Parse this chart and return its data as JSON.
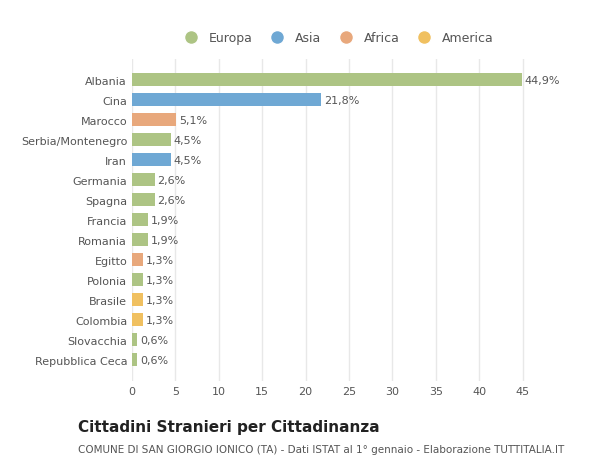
{
  "categories": [
    "Albania",
    "Cina",
    "Marocco",
    "Serbia/Montenegro",
    "Iran",
    "Germania",
    "Spagna",
    "Francia",
    "Romania",
    "Egitto",
    "Polonia",
    "Brasile",
    "Colombia",
    "Slovacchia",
    "Repubblica Ceca"
  ],
  "values": [
    44.9,
    21.8,
    5.1,
    4.5,
    4.5,
    2.6,
    2.6,
    1.9,
    1.9,
    1.3,
    1.3,
    1.3,
    1.3,
    0.6,
    0.6
  ],
  "labels": [
    "44,9%",
    "21,8%",
    "5,1%",
    "4,5%",
    "4,5%",
    "2,6%",
    "2,6%",
    "1,9%",
    "1,9%",
    "1,3%",
    "1,3%",
    "1,3%",
    "1,3%",
    "0,6%",
    "0,6%"
  ],
  "colors": [
    "#adc484",
    "#6fa8d4",
    "#e8a87c",
    "#adc484",
    "#6fa8d4",
    "#adc484",
    "#adc484",
    "#adc484",
    "#adc484",
    "#e8a87c",
    "#adc484",
    "#f0c060",
    "#f0c060",
    "#adc484",
    "#adc484"
  ],
  "legend_labels": [
    "Europa",
    "Asia",
    "Africa",
    "America"
  ],
  "legend_colors": [
    "#adc484",
    "#6fa8d4",
    "#e8a87c",
    "#f0c060"
  ],
  "title": "Cittadini Stranieri per Cittadinanza",
  "subtitle": "COMUNE DI SAN GIORGIO IONICO (TA) - Dati ISTAT al 1° gennaio - Elaborazione TUTTITALIA.IT",
  "xlim": [
    0,
    47
  ],
  "xticks": [
    0,
    5,
    10,
    15,
    20,
    25,
    30,
    35,
    40,
    45
  ],
  "bg_color": "#ffffff",
  "grid_color": "#e8e8e8",
  "bar_height": 0.65,
  "label_fontsize": 8,
  "ytick_fontsize": 8,
  "xtick_fontsize": 8,
  "title_fontsize": 11,
  "subtitle_fontsize": 7.5,
  "legend_fontsize": 9
}
